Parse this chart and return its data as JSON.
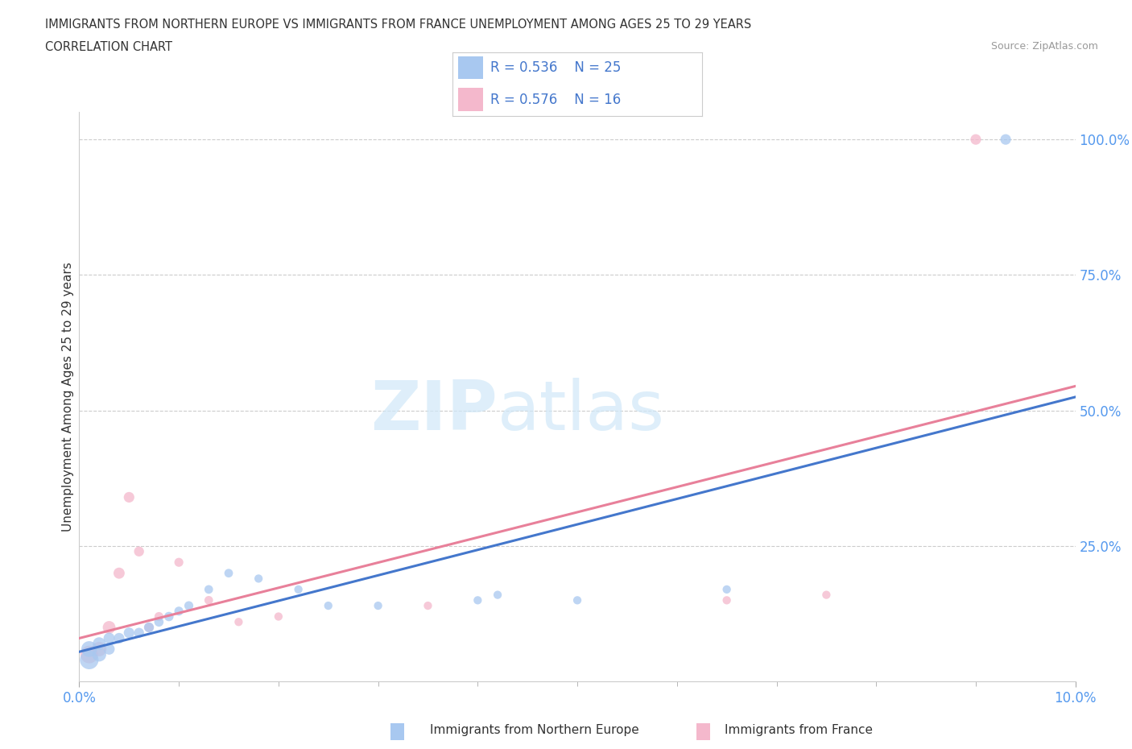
{
  "title_line1": "IMMIGRANTS FROM NORTHERN EUROPE VS IMMIGRANTS FROM FRANCE UNEMPLOYMENT AMONG AGES 25 TO 29 YEARS",
  "title_line2": "CORRELATION CHART",
  "source": "Source: ZipAtlas.com",
  "ylabel": "Unemployment Among Ages 25 to 29 years",
  "xlim": [
    0.0,
    0.1
  ],
  "ylim": [
    0.0,
    1.05
  ],
  "ytick_values": [
    0.25,
    0.5,
    0.75,
    1.0
  ],
  "r_blue": 0.536,
  "n_blue": 25,
  "r_pink": 0.576,
  "n_pink": 16,
  "blue_color": "#a8c8f0",
  "pink_color": "#f4b8cc",
  "blue_line_color": "#4477cc",
  "pink_line_color": "#e8809a",
  "watermark_zip": "ZIP",
  "watermark_atlas": "atlas",
  "blue_scatter_x": [
    0.001,
    0.001,
    0.002,
    0.002,
    0.003,
    0.003,
    0.004,
    0.005,
    0.006,
    0.007,
    0.008,
    0.009,
    0.01,
    0.011,
    0.013,
    0.015,
    0.018,
    0.022,
    0.025,
    0.03,
    0.04,
    0.042,
    0.05,
    0.065,
    0.093
  ],
  "blue_scatter_y": [
    0.04,
    0.06,
    0.05,
    0.07,
    0.06,
    0.08,
    0.08,
    0.09,
    0.09,
    0.1,
    0.11,
    0.12,
    0.13,
    0.14,
    0.17,
    0.2,
    0.19,
    0.17,
    0.14,
    0.14,
    0.15,
    0.16,
    0.15,
    0.17,
    1.0
  ],
  "pink_scatter_x": [
    0.001,
    0.002,
    0.003,
    0.004,
    0.005,
    0.006,
    0.007,
    0.008,
    0.01,
    0.013,
    0.016,
    0.02,
    0.035,
    0.065,
    0.075,
    0.09
  ],
  "pink_scatter_y": [
    0.05,
    0.06,
    0.1,
    0.2,
    0.34,
    0.24,
    0.1,
    0.12,
    0.22,
    0.15,
    0.11,
    0.12,
    0.14,
    0.15,
    0.16,
    1.0
  ],
  "blue_line_x0": 0.0,
  "blue_line_y0": 0.055,
  "blue_line_x1": 0.1,
  "blue_line_y1": 0.525,
  "pink_line_x0": 0.0,
  "pink_line_y0": 0.08,
  "pink_line_x1": 0.1,
  "pink_line_y1": 0.545,
  "blue_sizes": [
    280,
    200,
    160,
    130,
    100,
    100,
    90,
    90,
    80,
    80,
    70,
    70,
    65,
    65,
    60,
    60,
    55,
    55,
    55,
    55,
    55,
    55,
    55,
    55,
    90
  ],
  "pink_sizes": [
    250,
    170,
    130,
    100,
    90,
    80,
    70,
    65,
    65,
    60,
    55,
    55,
    55,
    55,
    55,
    90
  ],
  "grid_color": "#cccccc",
  "background_color": "#ffffff"
}
